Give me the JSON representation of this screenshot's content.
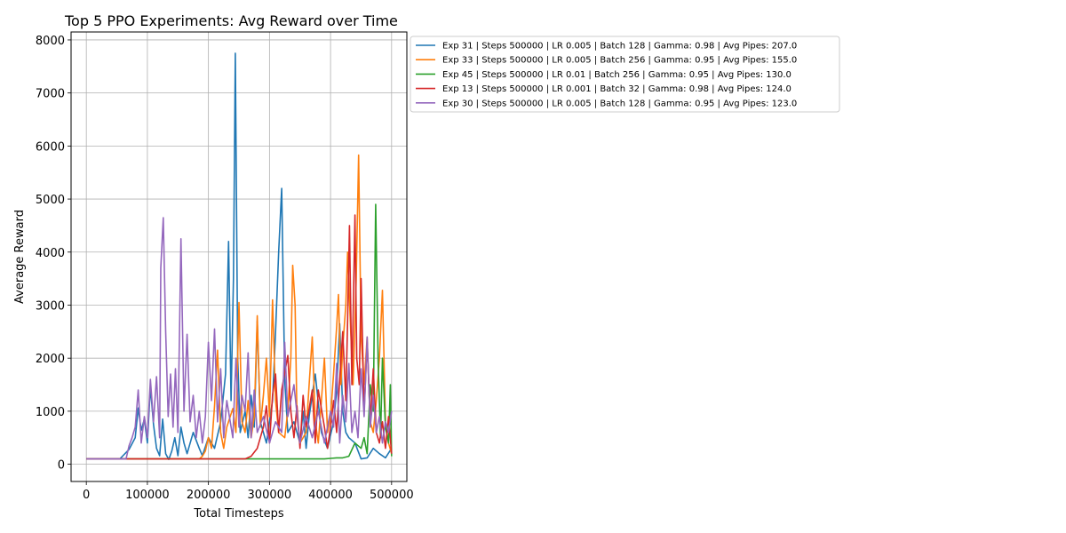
{
  "chart_data": {
    "type": "line",
    "title": "Top 5 PPO Experiments: Avg Reward over Time",
    "xlabel": "Total Timesteps",
    "ylabel": "Average Reward",
    "xlim": [
      -25000,
      525000
    ],
    "ylim": [
      -325,
      8150
    ],
    "xticks": [
      0,
      100000,
      200000,
      300000,
      400000,
      500000
    ],
    "xtick_labels": [
      "0",
      "100000",
      "200000",
      "300000",
      "400000",
      "500000"
    ],
    "yticks": [
      0,
      1000,
      2000,
      3000,
      4000,
      5000,
      6000,
      7000,
      8000
    ],
    "ytick_labels": [
      "0",
      "1000",
      "2000",
      "3000",
      "4000",
      "5000",
      "6000",
      "7000",
      "8000"
    ],
    "grid": true,
    "legend_position": "outside upper right",
    "series": [
      {
        "name": "Exp 31 | Steps 500000 | LR 0.005 | Batch 128 | Gamma: 0.98 | Avg Pipes: 207.0",
        "color": "#1f77b4",
        "points": [
          [
            0,
            101
          ],
          [
            55000,
            101
          ],
          [
            60000,
            160
          ],
          [
            70000,
            280
          ],
          [
            80000,
            500
          ],
          [
            85000,
            1060
          ],
          [
            90000,
            640
          ],
          [
            95000,
            850
          ],
          [
            100000,
            400
          ],
          [
            105000,
            1460
          ],
          [
            110000,
            750
          ],
          [
            115000,
            300
          ],
          [
            120000,
            160
          ],
          [
            125000,
            850
          ],
          [
            130000,
            200
          ],
          [
            135000,
            90
          ],
          [
            140000,
            250
          ],
          [
            145000,
            500
          ],
          [
            150000,
            160
          ],
          [
            155000,
            700
          ],
          [
            160000,
            400
          ],
          [
            165000,
            200
          ],
          [
            175000,
            600
          ],
          [
            185000,
            300
          ],
          [
            190000,
            160
          ],
          [
            200000,
            500
          ],
          [
            210000,
            300
          ],
          [
            220000,
            800
          ],
          [
            228000,
            1700
          ],
          [
            233000,
            4200
          ],
          [
            237000,
            1200
          ],
          [
            241000,
            3500
          ],
          [
            244000,
            7750
          ],
          [
            248000,
            2000
          ],
          [
            252000,
            600
          ],
          [
            260000,
            1000
          ],
          [
            265000,
            500
          ],
          [
            270000,
            1300
          ],
          [
            275000,
            700
          ],
          [
            280000,
            2700
          ],
          [
            285000,
            800
          ],
          [
            295000,
            400
          ],
          [
            305000,
            1200
          ],
          [
            310000,
            2500
          ],
          [
            315000,
            4000
          ],
          [
            320000,
            5200
          ],
          [
            325000,
            1600
          ],
          [
            330000,
            600
          ],
          [
            340000,
            800
          ],
          [
            350000,
            400
          ],
          [
            355000,
            1000
          ],
          [
            360000,
            300
          ],
          [
            365000,
            900
          ],
          [
            375000,
            1700
          ],
          [
            385000,
            600
          ],
          [
            395000,
            300
          ],
          [
            405000,
            800
          ],
          [
            410000,
            1400
          ],
          [
            415000,
            2650
          ],
          [
            420000,
            1000
          ],
          [
            425000,
            600
          ],
          [
            430000,
            500
          ],
          [
            440000,
            400
          ],
          [
            450000,
            100
          ],
          [
            460000,
            120
          ],
          [
            470000,
            300
          ],
          [
            480000,
            200
          ],
          [
            490000,
            120
          ],
          [
            500000,
            300
          ]
        ]
      },
      {
        "name": "Exp 33 | Steps 500000 | LR 0.005 | Batch 256 | Gamma: 0.95 | Avg Pipes: 155.0",
        "color": "#ff7f0e",
        "points": [
          [
            0,
            101
          ],
          [
            185000,
            101
          ],
          [
            190000,
            150
          ],
          [
            195000,
            250
          ],
          [
            200000,
            500
          ],
          [
            205000,
            300
          ],
          [
            210000,
            1100
          ],
          [
            215000,
            2150
          ],
          [
            220000,
            600
          ],
          [
            225000,
            300
          ],
          [
            230000,
            700
          ],
          [
            240000,
            1050
          ],
          [
            245000,
            600
          ],
          [
            250000,
            3050
          ],
          [
            255000,
            800
          ],
          [
            260000,
            600
          ],
          [
            265000,
            1200
          ],
          [
            270000,
            500
          ],
          [
            275000,
            900
          ],
          [
            280000,
            2800
          ],
          [
            285000,
            700
          ],
          [
            290000,
            1300
          ],
          [
            295000,
            2000
          ],
          [
            300000,
            900
          ],
          [
            305000,
            3100
          ],
          [
            310000,
            1200
          ],
          [
            315000,
            600
          ],
          [
            325000,
            500
          ],
          [
            330000,
            1000
          ],
          [
            335000,
            2000
          ],
          [
            338000,
            3750
          ],
          [
            342000,
            3000
          ],
          [
            345000,
            900
          ],
          [
            350000,
            400
          ],
          [
            360000,
            600
          ],
          [
            365000,
            1500
          ],
          [
            370000,
            2400
          ],
          [
            375000,
            800
          ],
          [
            380000,
            400
          ],
          [
            385000,
            1200
          ],
          [
            390000,
            2000
          ],
          [
            395000,
            600
          ],
          [
            400000,
            900
          ],
          [
            405000,
            1700
          ],
          [
            410000,
            2600
          ],
          [
            413000,
            3200
          ],
          [
            417000,
            1500
          ],
          [
            420000,
            2200
          ],
          [
            425000,
            3000
          ],
          [
            428000,
            4000
          ],
          [
            433000,
            2500
          ],
          [
            437000,
            1500
          ],
          [
            442000,
            3500
          ],
          [
            446000,
            5830
          ],
          [
            450000,
            2400
          ],
          [
            455000,
            1500
          ],
          [
            460000,
            2400
          ],
          [
            465000,
            800
          ],
          [
            470000,
            600
          ],
          [
            475000,
            1200
          ],
          [
            480000,
            2000
          ],
          [
            485000,
            3280
          ],
          [
            490000,
            800
          ],
          [
            495000,
            400
          ],
          [
            500000,
            200
          ]
        ]
      },
      {
        "name": "Exp 45 | Steps 500000 | LR 0.01 | Batch 256 | Gamma: 0.95 | Avg Pipes: 130.0",
        "color": "#2ca02c",
        "points": [
          [
            0,
            101
          ],
          [
            390000,
            101
          ],
          [
            400000,
            110
          ],
          [
            410000,
            120
          ],
          [
            420000,
            120
          ],
          [
            430000,
            150
          ],
          [
            440000,
            400
          ],
          [
            450000,
            300
          ],
          [
            455000,
            500
          ],
          [
            460000,
            200
          ],
          [
            465000,
            1500
          ],
          [
            470000,
            1000
          ],
          [
            474000,
            4900
          ],
          [
            478000,
            1900
          ],
          [
            482000,
            500
          ],
          [
            485000,
            2000
          ],
          [
            490000,
            700
          ],
          [
            495000,
            400
          ],
          [
            498000,
            1500
          ],
          [
            500000,
            150
          ]
        ]
      },
      {
        "name": "Exp 13 | Steps 500000 | LR 0.001 | Batch 32 | Gamma: 0.98 | Avg Pipes: 124.0",
        "color": "#d62728",
        "points": [
          [
            0,
            101
          ],
          [
            260000,
            101
          ],
          [
            270000,
            150
          ],
          [
            280000,
            300
          ],
          [
            290000,
            700
          ],
          [
            295000,
            1100
          ],
          [
            300000,
            400
          ],
          [
            305000,
            1300
          ],
          [
            310000,
            1700
          ],
          [
            315000,
            600
          ],
          [
            320000,
            1400
          ],
          [
            330000,
            2050
          ],
          [
            335000,
            1000
          ],
          [
            340000,
            500
          ],
          [
            345000,
            1100
          ],
          [
            350000,
            300
          ],
          [
            355000,
            1300
          ],
          [
            360000,
            700
          ],
          [
            370000,
            1400
          ],
          [
            375000,
            400
          ],
          [
            380000,
            1400
          ],
          [
            390000,
            700
          ],
          [
            395000,
            300
          ],
          [
            400000,
            700
          ],
          [
            405000,
            1200
          ],
          [
            410000,
            600
          ],
          [
            415000,
            1600
          ],
          [
            420000,
            2500
          ],
          [
            425000,
            1200
          ],
          [
            428000,
            2700
          ],
          [
            431000,
            4500
          ],
          [
            435000,
            1500
          ],
          [
            440000,
            4700
          ],
          [
            443000,
            2000
          ],
          [
            447000,
            1500
          ],
          [
            450000,
            3500
          ],
          [
            455000,
            1000
          ],
          [
            460000,
            2300
          ],
          [
            465000,
            800
          ],
          [
            470000,
            1800
          ],
          [
            475000,
            600
          ],
          [
            480000,
            400
          ],
          [
            485000,
            800
          ],
          [
            490000,
            300
          ],
          [
            495000,
            900
          ],
          [
            500000,
            200
          ]
        ]
      },
      {
        "name": "Exp 30 | Steps 500000 | LR 0.005 | Batch 128 | Gamma: 0.95 | Avg Pipes: 123.0",
        "color": "#9467bd",
        "points": [
          [
            0,
            101
          ],
          [
            65000,
            101
          ],
          [
            70000,
            350
          ],
          [
            75000,
            500
          ],
          [
            80000,
            700
          ],
          [
            85000,
            1400
          ],
          [
            90000,
            400
          ],
          [
            95000,
            900
          ],
          [
            100000,
            500
          ],
          [
            105000,
            1600
          ],
          [
            110000,
            800
          ],
          [
            115000,
            1650
          ],
          [
            120000,
            500
          ],
          [
            122000,
            3700
          ],
          [
            126000,
            4650
          ],
          [
            130000,
            2500
          ],
          [
            134000,
            900
          ],
          [
            138000,
            1700
          ],
          [
            142000,
            700
          ],
          [
            146000,
            1800
          ],
          [
            150000,
            600
          ],
          [
            155000,
            4250
          ],
          [
            160000,
            1000
          ],
          [
            165000,
            2450
          ],
          [
            170000,
            800
          ],
          [
            175000,
            1300
          ],
          [
            180000,
            500
          ],
          [
            185000,
            1000
          ],
          [
            190000,
            400
          ],
          [
            195000,
            900
          ],
          [
            200000,
            2300
          ],
          [
            205000,
            1200
          ],
          [
            210000,
            2550
          ],
          [
            215000,
            800
          ],
          [
            220000,
            1800
          ],
          [
            225000,
            500
          ],
          [
            230000,
            1200
          ],
          [
            240000,
            500
          ],
          [
            245000,
            2000
          ],
          [
            250000,
            700
          ],
          [
            255000,
            1300
          ],
          [
            260000,
            1000
          ],
          [
            265000,
            2100
          ],
          [
            270000,
            500
          ],
          [
            275000,
            1400
          ],
          [
            280000,
            600
          ],
          [
            290000,
            900
          ],
          [
            300000,
            400
          ],
          [
            310000,
            800
          ],
          [
            320000,
            600
          ],
          [
            325000,
            2300
          ],
          [
            330000,
            900
          ],
          [
            340000,
            1500
          ],
          [
            350000,
            400
          ],
          [
            360000,
            900
          ],
          [
            370000,
            500
          ],
          [
            380000,
            1000
          ],
          [
            390000,
            400
          ],
          [
            400000,
            1000
          ],
          [
            405000,
            700
          ],
          [
            410000,
            1900
          ],
          [
            415000,
            400
          ],
          [
            420000,
            1300
          ],
          [
            425000,
            800
          ],
          [
            430000,
            1900
          ],
          [
            435000,
            600
          ],
          [
            440000,
            1000
          ],
          [
            445000,
            500
          ],
          [
            450000,
            1800
          ],
          [
            455000,
            900
          ],
          [
            460000,
            2400
          ],
          [
            465000,
            700
          ],
          [
            470000,
            1300
          ],
          [
            475000,
            600
          ],
          [
            480000,
            900
          ],
          [
            485000,
            400
          ],
          [
            490000,
            800
          ],
          [
            495000,
            600
          ],
          [
            500000,
            1000
          ]
        ]
      }
    ]
  }
}
